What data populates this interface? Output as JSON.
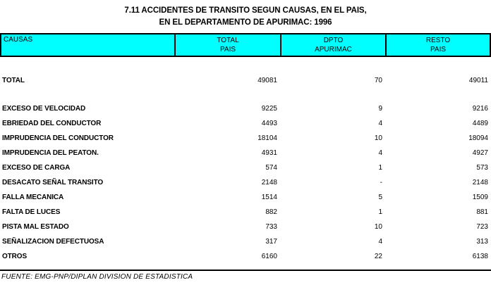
{
  "title": {
    "line1": "7.11 ACCIDENTES DE TRANSITO SEGUN CAUSAS, EN EL PAIS,",
    "line2": "EN EL DEPARTAMENTO DE APURIMAC: 1996"
  },
  "table": {
    "header": {
      "causas": "CAUSAS",
      "total_pais_line1": "TOTAL",
      "total_pais_line2": "PAIS",
      "dpto_line1": "DPTO",
      "dpto_line2": "APURIMAC",
      "resto_line1": "RESTO",
      "resto_line2": "PAIS"
    },
    "rows": [
      {
        "causa": "TOTAL",
        "total_pais": "49081",
        "dpto_apurimac": "70",
        "resto_pais": "49011"
      },
      {
        "causa": "EXCESO DE VELOCIDAD",
        "total_pais": "9225",
        "dpto_apurimac": "9",
        "resto_pais": "9216"
      },
      {
        "causa": "EBRIEDAD DEL CONDUCTOR",
        "total_pais": "4493",
        "dpto_apurimac": "4",
        "resto_pais": "4489"
      },
      {
        "causa": "IMPRUDENCIA DEL CONDUCTOR",
        "total_pais": "18104",
        "dpto_apurimac": "10",
        "resto_pais": "18094"
      },
      {
        "causa": "IMPRUDENCIA DEL PEATON.",
        "total_pais": "4931",
        "dpto_apurimac": "4",
        "resto_pais": "4927"
      },
      {
        "causa": "EXCESO DE CARGA",
        "total_pais": "574",
        "dpto_apurimac": "1",
        "resto_pais": "573"
      },
      {
        "causa": "DESACATO SEÑAL TRANSITO",
        "total_pais": "2148",
        "dpto_apurimac": "-",
        "resto_pais": "2148"
      },
      {
        "causa": "FALLA MECANICA",
        "total_pais": "1514",
        "dpto_apurimac": "5",
        "resto_pais": "1509"
      },
      {
        "causa": "FALTA DE LUCES",
        "total_pais": "882",
        "dpto_apurimac": "1",
        "resto_pais": "881"
      },
      {
        "causa": "PISTA MAL ESTADO",
        "total_pais": "733",
        "dpto_apurimac": "10",
        "resto_pais": "723"
      },
      {
        "causa": "SEÑALIZACION DEFECTUOSA",
        "total_pais": "317",
        "dpto_apurimac": "4",
        "resto_pais": "313"
      },
      {
        "causa": "OTROS",
        "total_pais": "6160",
        "dpto_apurimac": "22",
        "resto_pais": "6138"
      }
    ]
  },
  "footer": {
    "source": "FUENTE: EMG-PNP/DIPLAN DIVISION DE ESTADISTICA"
  },
  "colors": {
    "header_bg": "#00FFFF",
    "border": "#000000",
    "text": "#000000",
    "page_bg": "#FFFFFF"
  }
}
